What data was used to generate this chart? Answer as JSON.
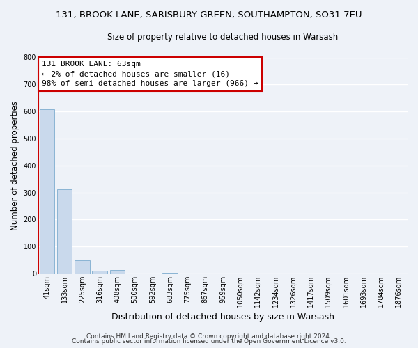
{
  "title1": "131, BROOK LANE, SARISBURY GREEN, SOUTHAMPTON, SO31 7EU",
  "title2": "Size of property relative to detached houses in Warsash",
  "xlabel": "Distribution of detached houses by size in Warsash",
  "ylabel": "Number of detached properties",
  "bar_labels": [
    "41sqm",
    "133sqm",
    "225sqm",
    "316sqm",
    "408sqm",
    "500sqm",
    "592sqm",
    "683sqm",
    "775sqm",
    "867sqm",
    "959sqm",
    "1050sqm",
    "1142sqm",
    "1234sqm",
    "1326sqm",
    "1417sqm",
    "1509sqm",
    "1601sqm",
    "1693sqm",
    "1784sqm",
    "1876sqm"
  ],
  "bar_values": [
    607,
    311,
    48,
    11,
    12,
    0,
    0,
    3,
    0,
    0,
    0,
    0,
    0,
    0,
    0,
    0,
    0,
    0,
    0,
    0,
    0
  ],
  "bar_color": "#c9d9ec",
  "bar_edge_color": "#8ab4d4",
  "highlight_edge_color": "#cc0000",
  "annotation_box_text": "131 BROOK LANE: 63sqm\n← 2% of detached houses are smaller (16)\n98% of semi-detached houses are larger (966) →",
  "ylim": [
    0,
    800
  ],
  "yticks": [
    0,
    100,
    200,
    300,
    400,
    500,
    600,
    700,
    800
  ],
  "footer1": "Contains HM Land Registry data © Crown copyright and database right 2024.",
  "footer2": "Contains public sector information licensed under the Open Government Licence v3.0.",
  "background_color": "#eef2f8",
  "grid_color": "#ffffff",
  "title1_fontsize": 9.5,
  "title2_fontsize": 8.5,
  "tick_fontsize": 7,
  "ylabel_fontsize": 8.5,
  "xlabel_fontsize": 9,
  "annotation_fontsize": 8,
  "footer_fontsize": 6.5
}
